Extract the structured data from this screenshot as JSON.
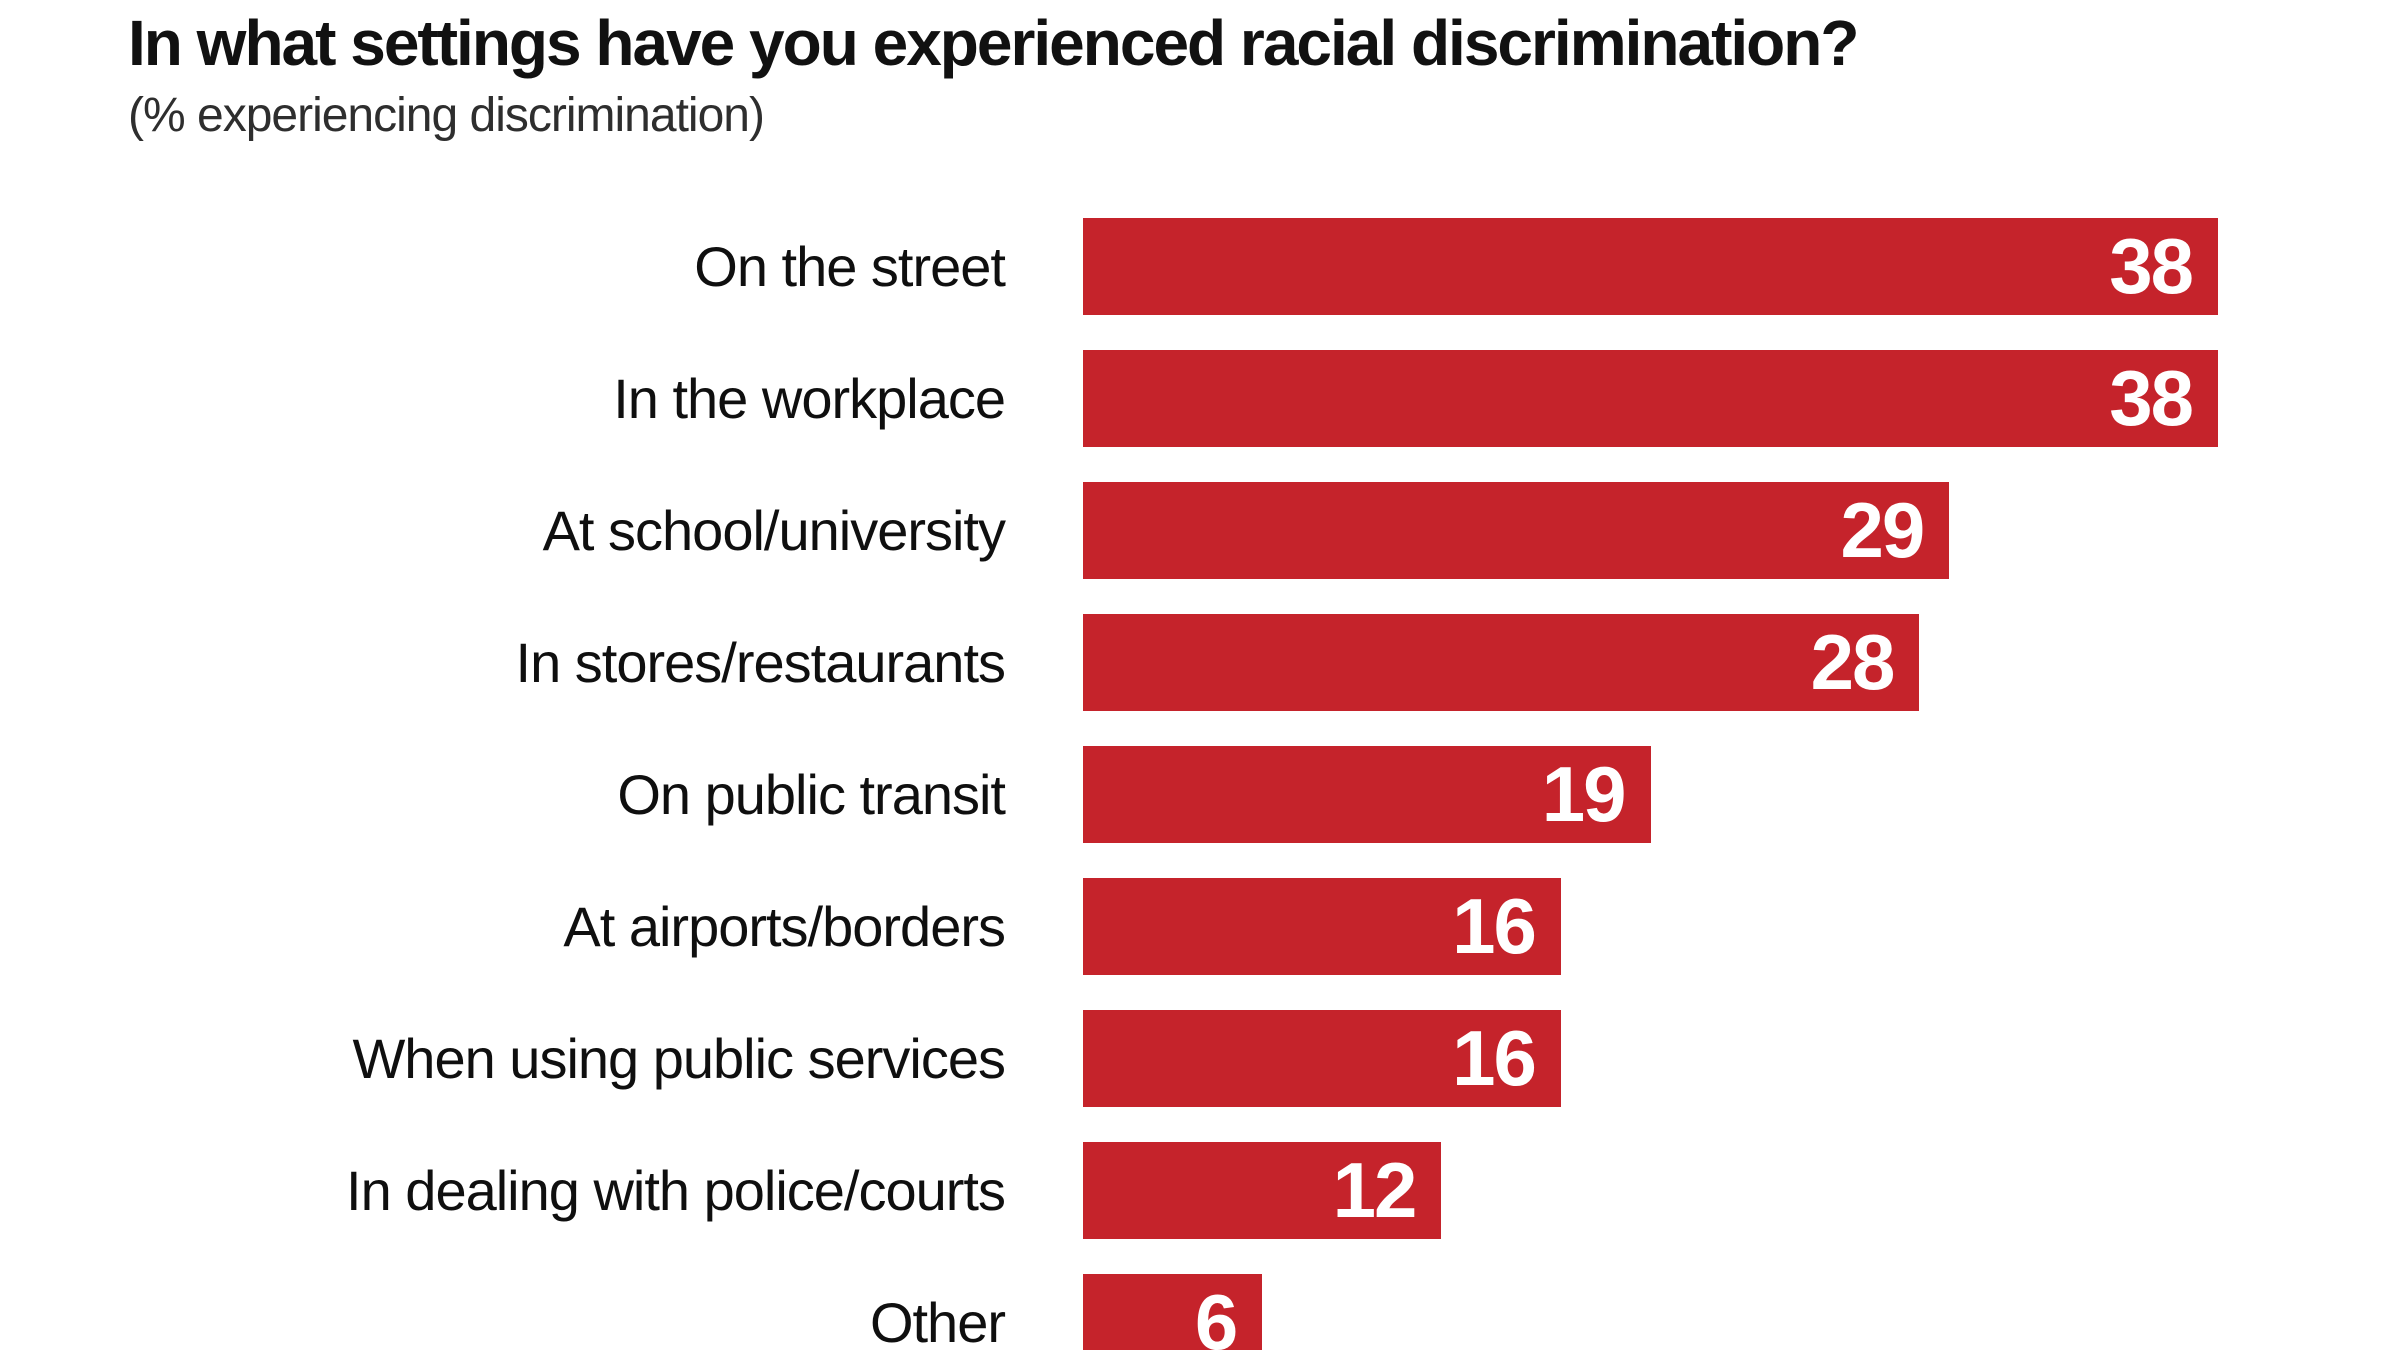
{
  "chart_data": {
    "type": "bar",
    "orientation": "horizontal",
    "title": "In what settings have you experienced racial discrimination?",
    "subtitle": "(% experiencing discrimination)",
    "categories": [
      "On the street",
      "In the workplace",
      "At school/university",
      "In stores/restaurants",
      "On public transit",
      "At airports/borders",
      "When using public services",
      "In dealing with police/courts",
      "Other"
    ],
    "values": [
      38,
      38,
      29,
      28,
      19,
      16,
      16,
      12,
      6
    ],
    "xlim": [
      0,
      38
    ],
    "grid": false,
    "legend": false,
    "value_label_position": "inside-end",
    "colors": {
      "bar": "#c5232b",
      "value_label": "#ffffff",
      "title": "#111111",
      "subtitle": "#2e2e2e",
      "category_label": "#0f0f0f",
      "background": "#ffffff"
    }
  }
}
